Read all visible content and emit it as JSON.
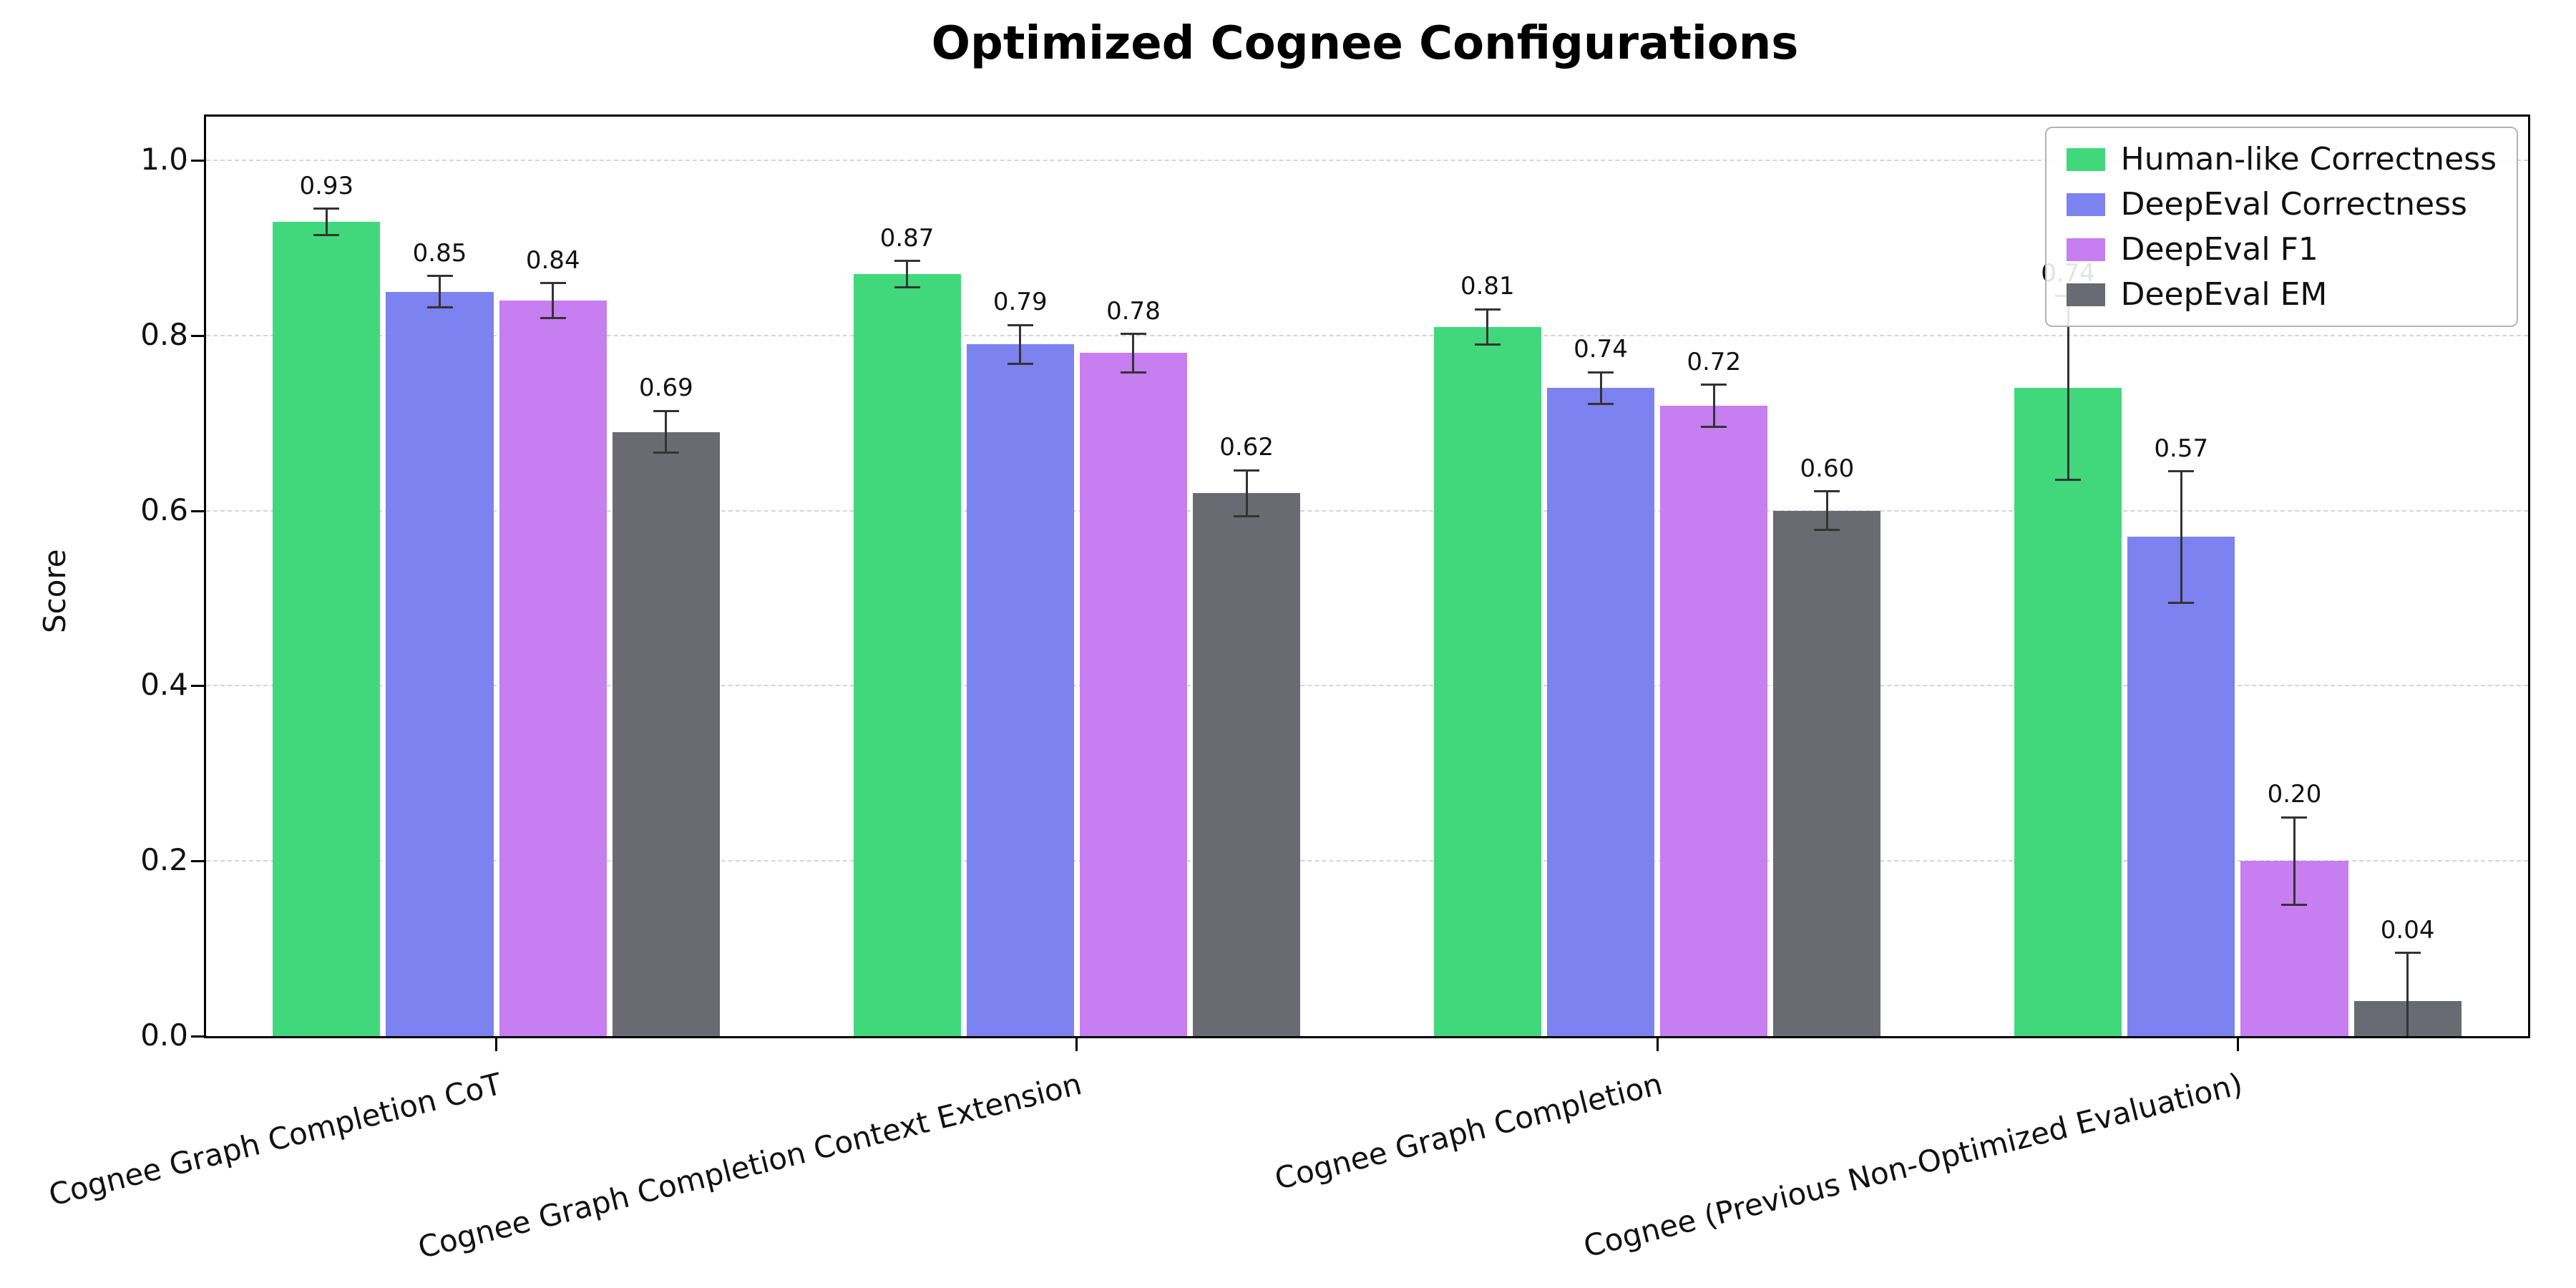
{
  "figure": {
    "title": "Optimized Cognee Configurations",
    "ylabel": "Score"
  },
  "chart_data": {
    "type": "bar",
    "title": "Optimized Cognee Configurations",
    "xlabel": "",
    "ylabel": "Score",
    "ylim": [
      0,
      1.05
    ],
    "yticks": [
      0,
      0.2,
      0.4,
      0.6,
      0.8,
      1.0
    ],
    "grid": "horizontal dashed",
    "legend_position": "upper right",
    "categories": [
      "Cognee Graph Completion CoT",
      "Cognee Graph Completion Context Extension",
      "Cognee Graph Completion",
      "Cognee (Previous Non-Optimized Evaluation)"
    ],
    "series": [
      {
        "name": "Human-like Correctness",
        "color": "#41d87c",
        "values": [
          0.93,
          0.87,
          0.81,
          0.74
        ],
        "errors": [
          0.015,
          0.015,
          0.02,
          0.105
        ]
      },
      {
        "name": "DeepEval Correctness",
        "color": "#7c82ef",
        "values": [
          0.85,
          0.79,
          0.74,
          0.57
        ],
        "errors": [
          0.018,
          0.022,
          0.018,
          0.075
        ]
      },
      {
        "name": "DeepEval F1",
        "color": "#c67ef0",
        "values": [
          0.84,
          0.78,
          0.72,
          0.2
        ],
        "errors": [
          0.02,
          0.022,
          0.024,
          0.05
        ]
      },
      {
        "name": "DeepEval EM",
        "color": "#696a72",
        "values": [
          0.69,
          0.62,
          0.6,
          0.04
        ],
        "errors": [
          0.024,
          0.026,
          0.022,
          0.055
        ]
      }
    ],
    "error_bar_color": "#333333"
  }
}
